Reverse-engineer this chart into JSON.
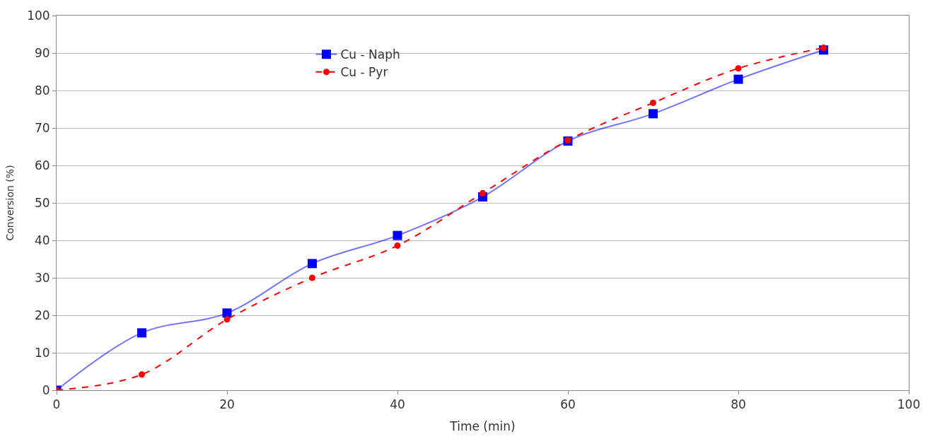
{
  "chart_data": {
    "type": "line",
    "xlabel": "Time (min)",
    "ylabel": "Conversion (%)",
    "x": [
      0,
      10,
      20,
      30,
      40,
      50,
      60,
      70,
      80,
      90
    ],
    "series": [
      {
        "name": "Cu - Naph",
        "color": "#0000ff",
        "values": [
          0,
          15.3,
          20.6,
          33.8,
          41.3,
          51.6,
          66.5,
          73.8,
          83,
          90.8
        ],
        "marker": "square",
        "line_style": "solid"
      },
      {
        "name": "Cu - Pyr",
        "color": "#ff0000",
        "values": [
          0,
          4.2,
          18.9,
          30,
          38.6,
          52.6,
          66.7,
          76.7,
          85.9,
          91.4
        ],
        "marker": "circle",
        "line_style": "dashed"
      }
    ],
    "xlim": [
      0,
      100
    ],
    "xticks": [
      0,
      20,
      40,
      60,
      80,
      100
    ],
    "ylim": [
      0,
      100
    ],
    "yticks": [
      0,
      10,
      20,
      30,
      40,
      50,
      60,
      70,
      80,
      90,
      100
    ],
    "grid": "y",
    "legend": "top"
  }
}
